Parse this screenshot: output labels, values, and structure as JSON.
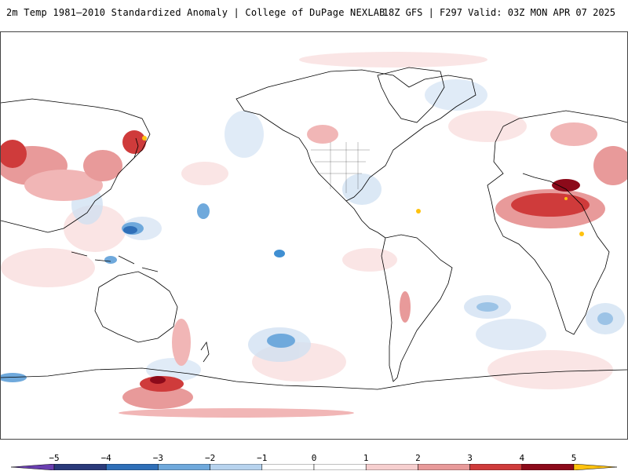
{
  "header": {
    "title_left": "2m Temp 1981–2010 Standardized Anomaly | College of DuPage NEXLAB",
    "title_right": "18Z GFS | F297 Valid: 03Z MON APR 07 2025"
  },
  "colors": {
    "strong_warm": "#7a0010",
    "warm": "#c2282d",
    "mild_warm": "#e88a8a",
    "slight_warm": "#f4c4c4",
    "near_zero": "#ffffff",
    "slight_cool": "#d6e4f4",
    "mild_cool": "#9cc3e6",
    "cool": "#3f8fd2",
    "strong_cool": "#1c3f8a",
    "extreme_cold": "#6a3fb0",
    "extreme_warm": "#ffc20e",
    "land_outline": "#000000"
  },
  "legend": {
    "ticks": [
      {
        "label": "−5",
        "value": -5
      },
      {
        "label": "−4",
        "value": -4
      },
      {
        "label": "−3",
        "value": -3
      },
      {
        "label": "−2",
        "value": -2
      },
      {
        "label": "−1",
        "value": -1
      },
      {
        "label": "0",
        "value": 0
      },
      {
        "label": "1",
        "value": 1
      },
      {
        "label": "2",
        "value": 2
      },
      {
        "label": "3",
        "value": 3
      },
      {
        "label": "4",
        "value": 4
      },
      {
        "label": "5",
        "value": 5
      }
    ],
    "segments": [
      {
        "from": -5,
        "to": -4,
        "color": "#2a3a7a"
      },
      {
        "from": -4,
        "to": -3,
        "color": "#2f6fb8"
      },
      {
        "from": -3,
        "to": -2,
        "color": "#6fa9dc"
      },
      {
        "from": -2,
        "to": -1,
        "color": "#b7d3ee"
      },
      {
        "from": -1,
        "to": 0,
        "color": "#ffffff"
      },
      {
        "from": 0,
        "to": 1,
        "color": "#ffffff"
      },
      {
        "from": 1,
        "to": 2,
        "color": "#f6cfcf"
      },
      {
        "from": 2,
        "to": 3,
        "color": "#e89a9a"
      },
      {
        "from": 3,
        "to": 4,
        "color": "#cf3b3b"
      },
      {
        "from": 4,
        "to": 5,
        "color": "#8c0a1a"
      }
    ],
    "under_color": "#6a3fb0",
    "over_color": "#ffc20e"
  },
  "map": {
    "projection": "equirectangular",
    "center_longitude": "dateline",
    "variable": "2m temperature standardized anomaly"
  }
}
